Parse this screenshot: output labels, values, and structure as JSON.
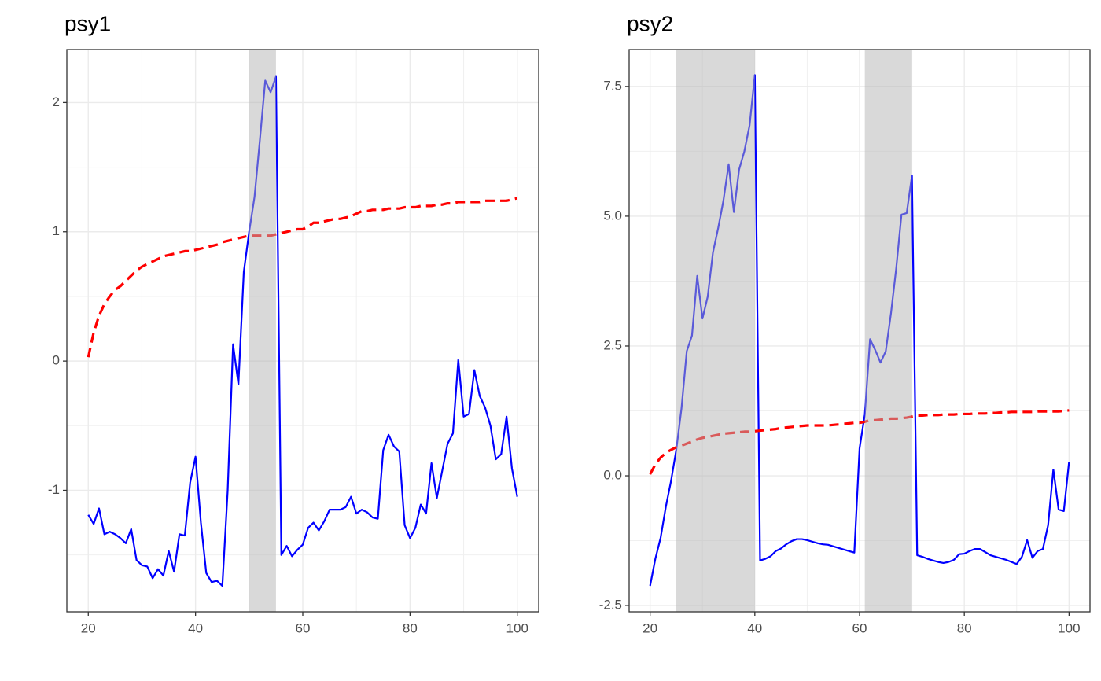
{
  "chart_data": [
    {
      "type": "line",
      "title": "psy1",
      "x": [
        20,
        21,
        22,
        23,
        24,
        25,
        26,
        27,
        28,
        29,
        30,
        31,
        32,
        33,
        34,
        35,
        36,
        37,
        38,
        39,
        40,
        41,
        42,
        43,
        44,
        45,
        46,
        47,
        48,
        49,
        50,
        51,
        52,
        53,
        54,
        55,
        56,
        57,
        58,
        59,
        60,
        61,
        62,
        63,
        64,
        65,
        66,
        67,
        68,
        69,
        70,
        71,
        72,
        73,
        74,
        75,
        76,
        77,
        78,
        79,
        80,
        81,
        82,
        83,
        84,
        85,
        86,
        87,
        88,
        89,
        90,
        91,
        92,
        93,
        94,
        95,
        96,
        97,
        98,
        99,
        100
      ],
      "series": [
        {
          "color": "#0000ff",
          "linestyle": "solid",
          "values": [
            -1.19,
            -1.26,
            -1.14,
            -1.34,
            -1.32,
            -1.34,
            -1.37,
            -1.41,
            -1.3,
            -1.54,
            -1.58,
            -1.59,
            -1.68,
            -1.61,
            -1.66,
            -1.47,
            -1.63,
            -1.34,
            -1.35,
            -0.94,
            -0.74,
            -1.25,
            -1.64,
            -1.71,
            -1.7,
            -1.74,
            -1.0,
            0.13,
            -0.18,
            0.69,
            1.0,
            1.27,
            1.71,
            2.17,
            2.08,
            2.2,
            -1.5,
            -1.43,
            -1.51,
            -1.46,
            -1.42,
            -1.29,
            -1.25,
            -1.31,
            -1.24,
            -1.15,
            -1.15,
            -1.15,
            -1.13,
            -1.05,
            -1.18,
            -1.15,
            -1.17,
            -1.21,
            -1.22,
            -0.69,
            -0.57,
            -0.66,
            -0.7,
            -1.27,
            -1.37,
            -1.29,
            -1.11,
            -1.18,
            -0.79,
            -1.06,
            -0.85,
            -0.64,
            -0.56,
            0.01,
            -0.43,
            -0.41,
            -0.07,
            -0.27,
            -0.36,
            -0.5,
            -0.76,
            -0.72,
            -0.43,
            -0.83,
            -1.05
          ]
        },
        {
          "color": "#ff0000",
          "linestyle": "dashed",
          "values": [
            0.03,
            0.22,
            0.35,
            0.44,
            0.5,
            0.55,
            0.58,
            0.62,
            0.66,
            0.7,
            0.73,
            0.75,
            0.77,
            0.79,
            0.81,
            0.82,
            0.83,
            0.84,
            0.85,
            0.85,
            0.86,
            0.87,
            0.88,
            0.89,
            0.9,
            0.92,
            0.93,
            0.94,
            0.95,
            0.96,
            0.97,
            0.97,
            0.97,
            0.97,
            0.97,
            0.98,
            0.99,
            1.0,
            1.01,
            1.02,
            1.02,
            1.04,
            1.07,
            1.07,
            1.08,
            1.09,
            1.1,
            1.1,
            1.11,
            1.12,
            1.14,
            1.16,
            1.16,
            1.17,
            1.17,
            1.17,
            1.18,
            1.18,
            1.18,
            1.19,
            1.19,
            1.19,
            1.2,
            1.2,
            1.2,
            1.21,
            1.21,
            1.22,
            1.22,
            1.23,
            1.23,
            1.23,
            1.23,
            1.23,
            1.24,
            1.24,
            1.24,
            1.24,
            1.24,
            1.25,
            1.26
          ]
        }
      ],
      "shaded_regions": [
        [
          50,
          55
        ]
      ],
      "shade_color": "#b3b3b3",
      "xlim": [
        16,
        104
      ],
      "ylim": [
        -1.94,
        2.41
      ],
      "xticks": [
        20,
        40,
        60,
        80,
        100
      ],
      "yticks": [
        -1,
        0,
        1,
        2
      ],
      "xminorticks": [
        30,
        50,
        70,
        90
      ],
      "yminorticks": [
        -1.5,
        -0.5,
        0.5,
        1.5
      ],
      "grid": true
    },
    {
      "type": "line",
      "title": "psy2",
      "x": [
        20,
        21,
        22,
        23,
        24,
        25,
        26,
        27,
        28,
        29,
        30,
        31,
        32,
        33,
        34,
        35,
        36,
        37,
        38,
        39,
        40,
        41,
        42,
        43,
        44,
        45,
        46,
        47,
        48,
        49,
        50,
        51,
        52,
        53,
        54,
        55,
        56,
        57,
        58,
        59,
        60,
        61,
        62,
        63,
        64,
        65,
        66,
        67,
        68,
        69,
        70,
        71,
        72,
        73,
        74,
        75,
        76,
        77,
        78,
        79,
        80,
        81,
        82,
        83,
        84,
        85,
        86,
        87,
        88,
        89,
        90,
        91,
        92,
        93,
        94,
        95,
        96,
        97,
        98,
        99,
        100
      ],
      "series": [
        {
          "color": "#0000ff",
          "linestyle": "solid",
          "values": [
            -2.12,
            -1.6,
            -1.2,
            -0.6,
            -0.1,
            0.5,
            1.3,
            2.4,
            2.7,
            3.85,
            3.03,
            3.45,
            4.3,
            4.77,
            5.3,
            6.0,
            5.08,
            5.9,
            6.25,
            6.75,
            7.72,
            -1.63,
            -1.6,
            -1.55,
            -1.45,
            -1.4,
            -1.32,
            -1.26,
            -1.22,
            -1.22,
            -1.24,
            -1.27,
            -1.3,
            -1.32,
            -1.33,
            -1.36,
            -1.39,
            -1.42,
            -1.45,
            -1.48,
            0.53,
            1.18,
            2.63,
            2.42,
            2.18,
            2.4,
            3.13,
            4.0,
            5.03,
            5.06,
            5.78,
            -1.53,
            -1.56,
            -1.6,
            -1.63,
            -1.66,
            -1.68,
            -1.66,
            -1.62,
            -1.51,
            -1.5,
            -1.45,
            -1.41,
            -1.41,
            -1.47,
            -1.53,
            -1.56,
            -1.59,
            -1.62,
            -1.66,
            -1.7,
            -1.56,
            -1.24,
            -1.58,
            -1.45,
            -1.41,
            -0.95,
            0.12,
            -0.65,
            -0.68,
            0.27
          ]
        },
        {
          "color": "#ff0000",
          "linestyle": "dashed",
          "values": [
            0.03,
            0.22,
            0.35,
            0.44,
            0.5,
            0.55,
            0.58,
            0.62,
            0.66,
            0.7,
            0.73,
            0.75,
            0.77,
            0.79,
            0.81,
            0.82,
            0.83,
            0.84,
            0.85,
            0.85,
            0.86,
            0.87,
            0.88,
            0.89,
            0.9,
            0.92,
            0.93,
            0.94,
            0.95,
            0.96,
            0.97,
            0.97,
            0.97,
            0.97,
            0.97,
            0.98,
            0.99,
            1.0,
            1.01,
            1.02,
            1.02,
            1.04,
            1.07,
            1.07,
            1.08,
            1.09,
            1.1,
            1.1,
            1.11,
            1.12,
            1.14,
            1.16,
            1.16,
            1.17,
            1.17,
            1.17,
            1.18,
            1.18,
            1.18,
            1.19,
            1.19,
            1.19,
            1.2,
            1.2,
            1.2,
            1.21,
            1.21,
            1.22,
            1.22,
            1.23,
            1.23,
            1.23,
            1.23,
            1.23,
            1.24,
            1.24,
            1.24,
            1.24,
            1.24,
            1.25,
            1.26
          ]
        }
      ],
      "shaded_regions": [
        [
          25,
          40
        ],
        [
          61,
          70
        ]
      ],
      "shade_color": "#b3b3b3",
      "xlim": [
        16,
        104
      ],
      "ylim": [
        -2.62,
        8.21
      ],
      "xticks": [
        20,
        40,
        60,
        80,
        100
      ],
      "yticks": [
        -2.5,
        {
          "value": 0,
          "label": "0.0"
        },
        2.5,
        {
          "value": 5,
          "label": "5.0"
        },
        7.5
      ],
      "xminorticks": [
        30,
        50,
        70,
        90
      ],
      "yminorticks": [
        -1.25,
        1.25,
        3.75,
        6.25
      ],
      "grid": true
    }
  ]
}
